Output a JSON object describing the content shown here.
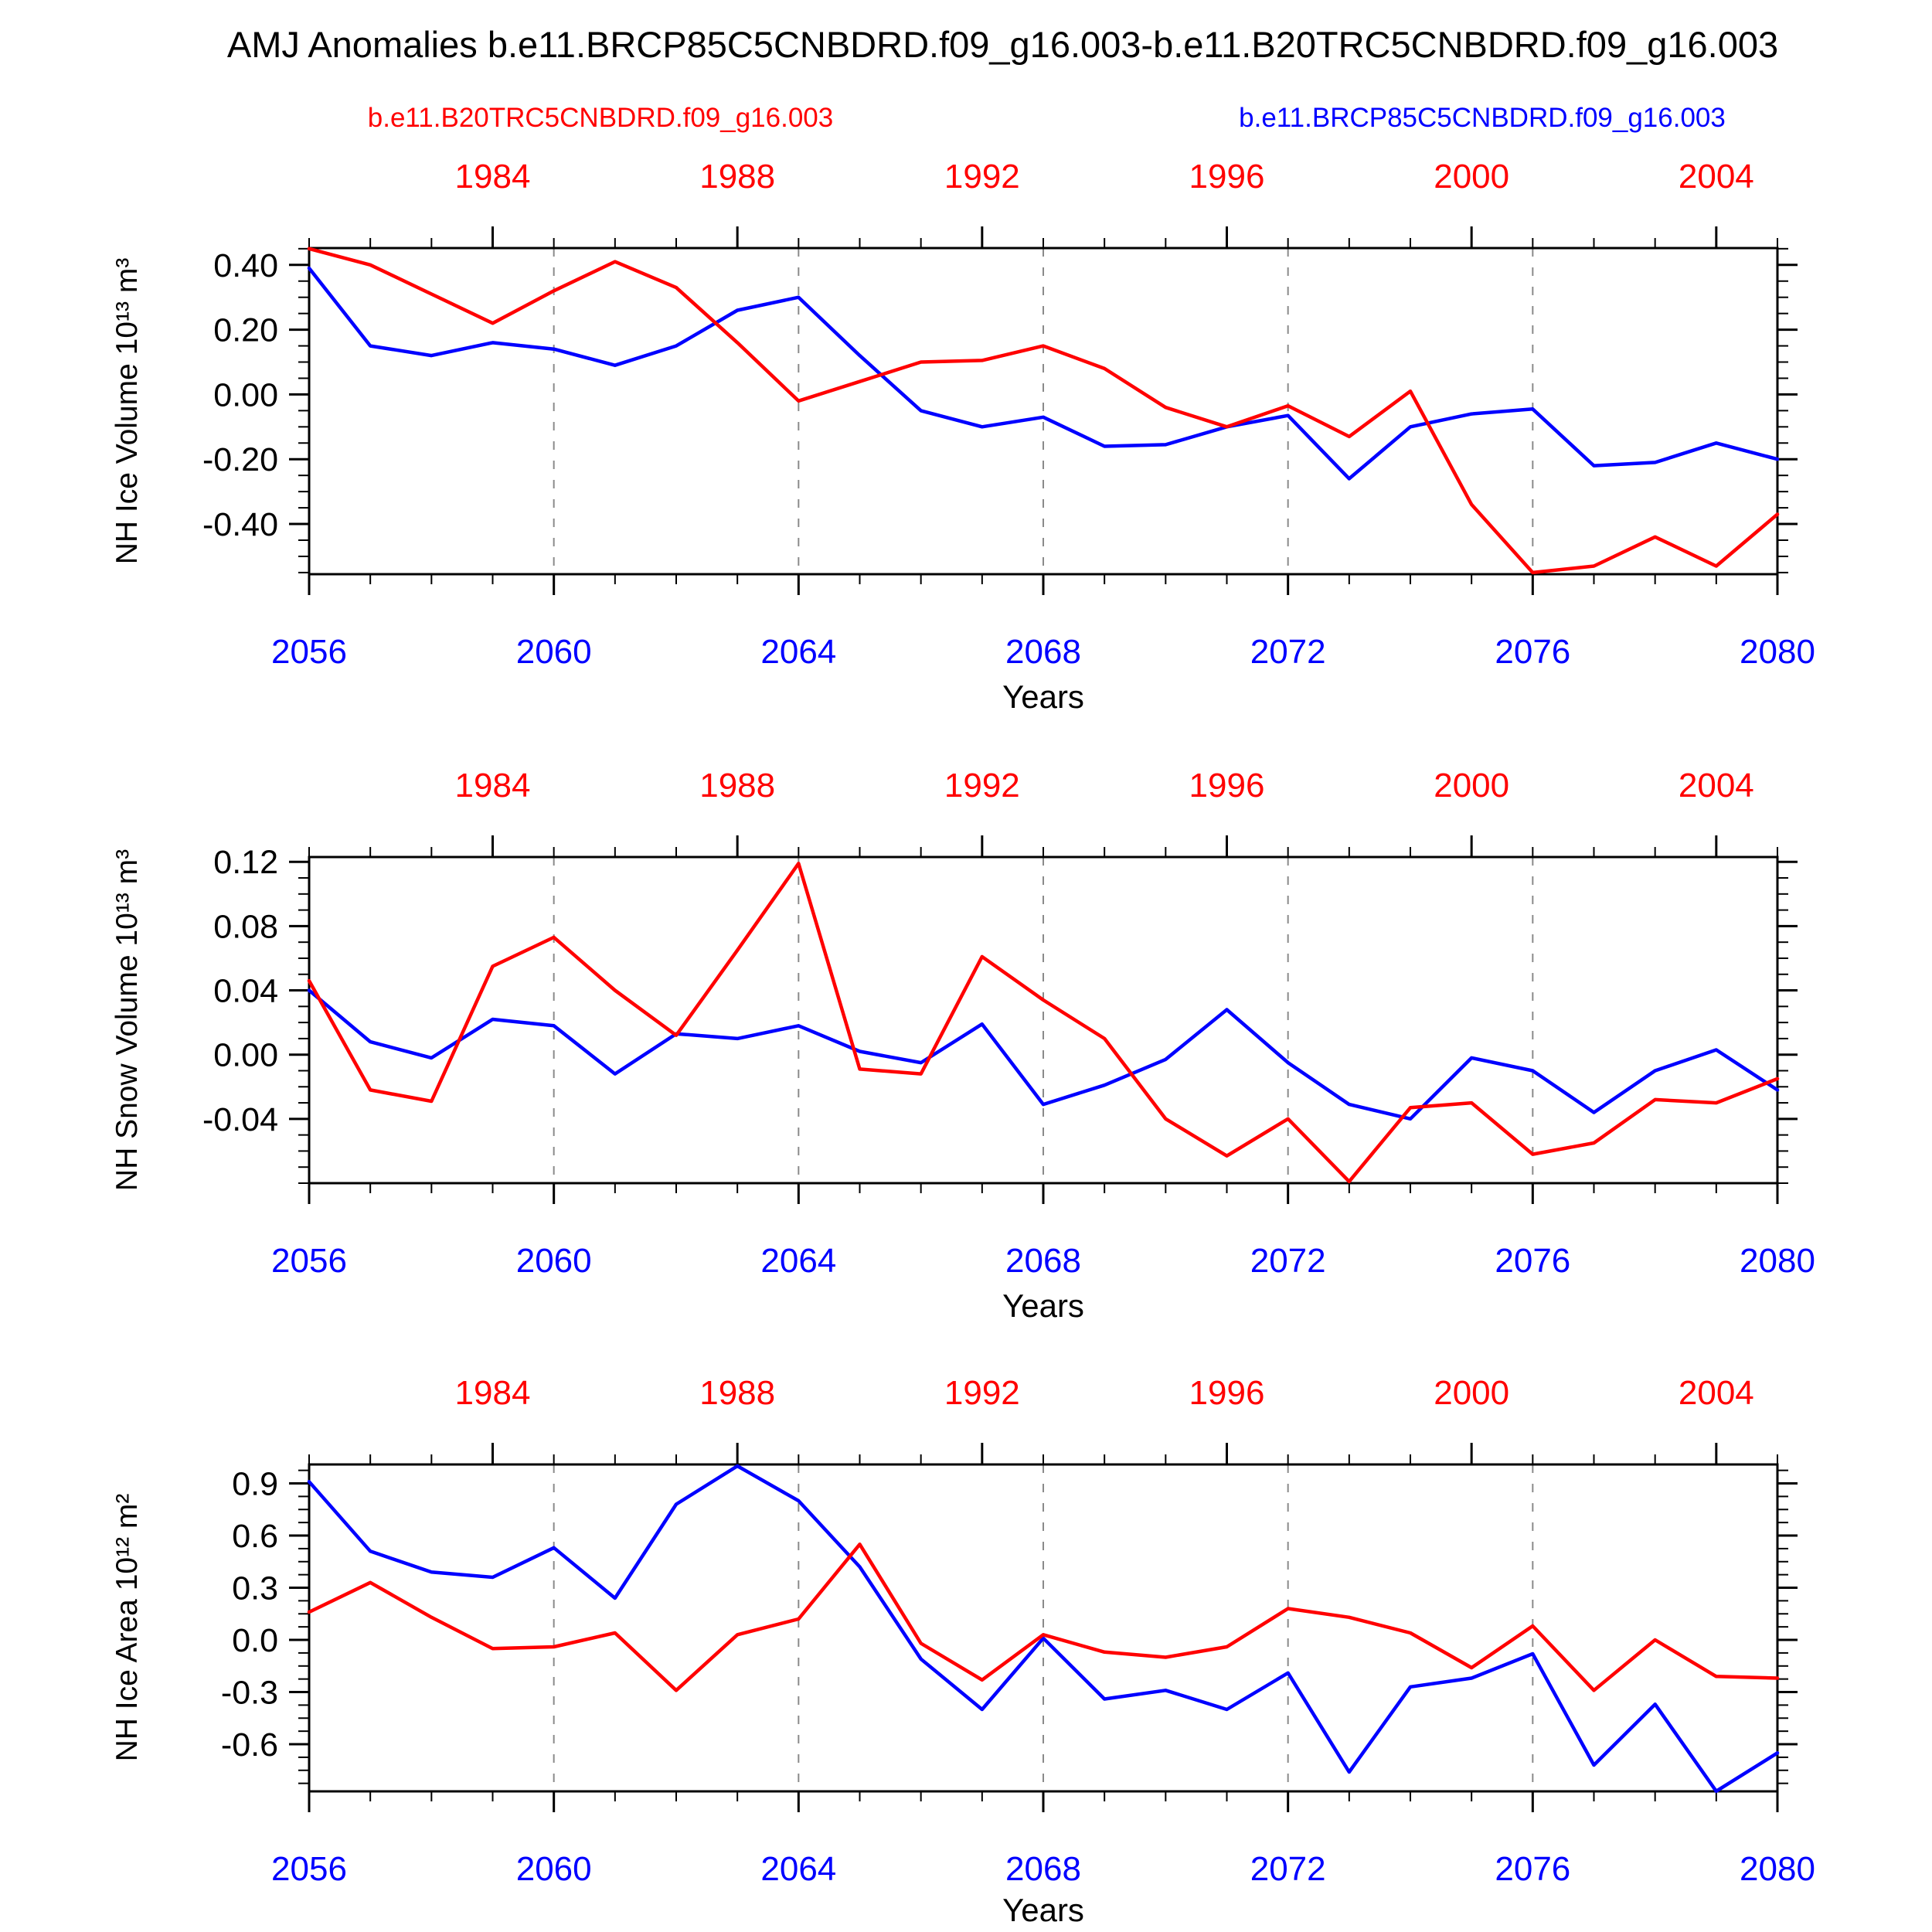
{
  "title": "AMJ Anomalies b.e11.BRCP85C5CNBDRD.f09_g16.003-b.e11.B20TRC5CNBDRD.f09_g16.003",
  "legend": {
    "red_label": "b.e11.B20TRC5CNBDRD.f09_g16.003",
    "blue_label": "b.e11.BRCP85C5CNBDRD.f09_g16.003"
  },
  "colors": {
    "red": "#ff0000",
    "blue": "#0000ff",
    "axis": "#000000",
    "grid": "#8a8a8a"
  },
  "x_axis": {
    "label": "Years",
    "x_start": 2056,
    "x_end": 2080,
    "bottom_tick_labels": [
      "2056",
      "2060",
      "2064",
      "2068",
      "2072",
      "2076",
      "2080"
    ],
    "bottom_tick_years": [
      2056,
      2060,
      2064,
      2068,
      2072,
      2076,
      2080
    ],
    "top_tick_labels": [
      "1984",
      "1988",
      "1992",
      "1996",
      "2000",
      "2004"
    ],
    "top_tick_years": [
      2059,
      2063,
      2067,
      2071,
      2075,
      2079
    ],
    "grid_years": [
      2060,
      2064,
      2068,
      2072,
      2076
    ]
  },
  "chart_data": [
    {
      "type": "line",
      "ylabel": "NH Ice Volume 10¹³ m³",
      "xlabel": "Years",
      "ylim": [
        -0.555,
        0.452
      ],
      "y_ticks": [
        "0.40",
        "0.20",
        "0.00",
        "-0.20",
        "-0.40"
      ],
      "y_minor_step": 0.05,
      "x_start": 2056,
      "x_end": 2080,
      "grid": "vertical-dashed",
      "legend_position": "top-of-figure",
      "series": [
        {
          "name": "b.e11.BRCP85C5CNBDRD.f09_g16.003",
          "color": "#0000ff",
          "values": [
            0.39,
            0.15,
            0.12,
            0.16,
            0.14,
            0.09,
            0.15,
            0.26,
            0.3,
            0.12,
            -0.05,
            -0.1,
            -0.07,
            -0.16,
            -0.155,
            -0.1,
            -0.065,
            -0.26,
            -0.1,
            -0.06,
            -0.045,
            -0.22,
            -0.21,
            -0.15,
            -0.2
          ]
        },
        {
          "name": "b.e11.B20TRC5CNBDRD.f09_g16.003",
          "color": "#ff0000",
          "values": [
            0.45,
            0.4,
            0.31,
            0.22,
            0.32,
            0.41,
            0.33,
            0.16,
            -0.02,
            0.04,
            0.1,
            0.105,
            0.15,
            0.08,
            -0.04,
            -0.1,
            -0.035,
            -0.13,
            0.01,
            -0.34,
            -0.55,
            -0.53,
            -0.44,
            -0.53,
            -0.37
          ]
        }
      ]
    },
    {
      "type": "line",
      "ylabel": "NH Snow Volume 10¹³ m³",
      "xlabel": "Years",
      "ylim": [
        -0.08,
        0.123
      ],
      "y_ticks": [
        "0.12",
        "0.08",
        "0.04",
        "0.00",
        "-0.04"
      ],
      "y_minor_step": 0.01,
      "x_start": 2056,
      "x_end": 2080,
      "grid": "vertical-dashed",
      "series": [
        {
          "name": "b.e11.BRCP85C5CNBDRD.f09_g16.003",
          "color": "#0000ff",
          "values": [
            0.04,
            0.008,
            -0.002,
            0.022,
            0.018,
            -0.012,
            0.013,
            0.01,
            0.018,
            0.002,
            -0.005,
            0.019,
            -0.031,
            -0.019,
            -0.003,
            0.028,
            -0.005,
            -0.031,
            -0.04,
            -0.002,
            -0.01,
            -0.036,
            -0.01,
            0.003,
            -0.022
          ]
        },
        {
          "name": "b.e11.B20TRC5CNBDRD.f09_g16.003",
          "color": "#ff0000",
          "values": [
            0.046,
            -0.022,
            -0.029,
            0.055,
            0.073,
            0.04,
            0.012,
            0.065,
            0.119,
            -0.009,
            -0.012,
            0.061,
            0.034,
            0.01,
            -0.04,
            -0.063,
            -0.04,
            -0.079,
            -0.033,
            -0.03,
            -0.062,
            -0.055,
            -0.028,
            -0.03,
            -0.015
          ]
        }
      ]
    },
    {
      "type": "line",
      "ylabel": "NH Ice Area 10¹² m²",
      "xlabel": "Years",
      "ylim": [
        -0.871,
        1.009
      ],
      "y_ticks": [
        "0.9",
        "0.6",
        "0.3",
        "0.0",
        "-0.3",
        "-0.6"
      ],
      "y_minor_step": 0.075,
      "x_start": 2056,
      "x_end": 2080,
      "grid": "vertical-dashed",
      "series": [
        {
          "name": "b.e11.BRCP85C5CNBDRD.f09_g16.003",
          "color": "#0000ff",
          "values": [
            0.91,
            0.51,
            0.39,
            0.36,
            0.53,
            0.24,
            0.78,
            1.0,
            0.8,
            0.42,
            -0.11,
            -0.4,
            0.01,
            -0.34,
            -0.29,
            -0.4,
            -0.19,
            -0.76,
            -0.27,
            -0.22,
            -0.08,
            -0.72,
            -0.37,
            -0.87,
            -0.65
          ]
        },
        {
          "name": "b.e11.B20TRC5CNBDRD.f09_g16.003",
          "color": "#ff0000",
          "values": [
            0.16,
            0.33,
            0.13,
            -0.05,
            -0.04,
            0.04,
            -0.29,
            0.03,
            0.12,
            0.55,
            -0.02,
            -0.23,
            0.03,
            -0.07,
            -0.1,
            -0.04,
            0.18,
            0.13,
            0.04,
            -0.16,
            0.08,
            -0.29,
            0.0,
            -0.21,
            -0.22
          ]
        }
      ]
    }
  ]
}
